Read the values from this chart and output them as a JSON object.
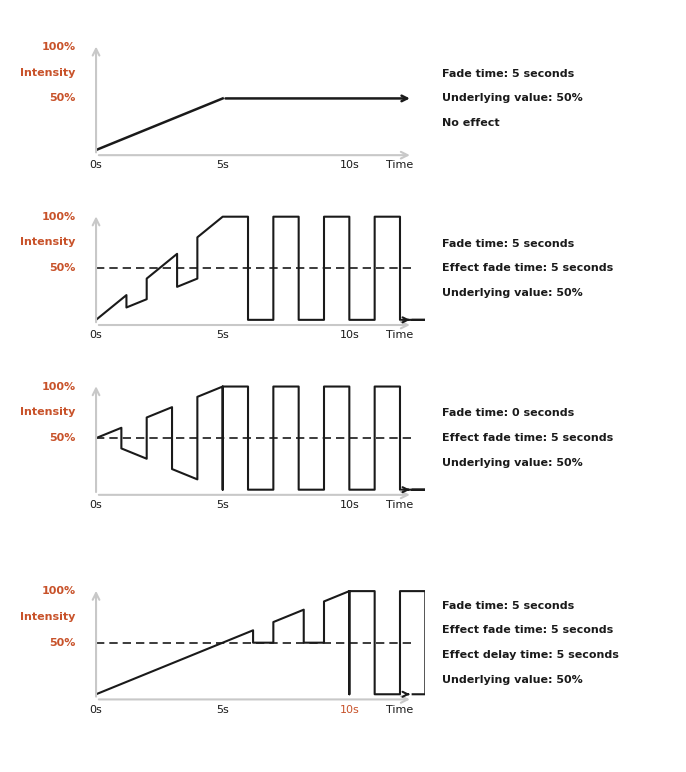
{
  "fig_width": 6.86,
  "fig_height": 7.72,
  "bg_color": "#ffffff",
  "axis_color": "#c8c8c8",
  "line_color": "#1a1a1a",
  "dashed_color": "#1a1a1a",
  "label_color_orange": "#c8522a",
  "text_color": "#1a1a1a",
  "panels": [
    {
      "annotation": [
        "Fade time: 5 seconds",
        "Underlying value: 50%",
        "No effect"
      ],
      "show_dashed": false,
      "xtick_colors": [
        "#1a1a1a",
        "#1a1a1a",
        "#1a1a1a"
      ]
    },
    {
      "annotation": [
        "Fade time: 5 seconds",
        "Effect fade time: 5 seconds",
        "Underlying value: 50%"
      ],
      "show_dashed": true,
      "xtick_colors": [
        "#1a1a1a",
        "#1a1a1a",
        "#1a1a1a"
      ]
    },
    {
      "annotation": [
        "Fade time: 0 seconds",
        "Effect fade time: 5 seconds",
        "Underlying value: 50%"
      ],
      "show_dashed": true,
      "xtick_colors": [
        "#1a1a1a",
        "#1a1a1a",
        "#1a1a1a"
      ]
    },
    {
      "annotation": [
        "Fade time: 5 seconds",
        "Effect fade time: 5 seconds",
        "Effect delay time: 5 seconds",
        "Underlying value: 50%"
      ],
      "show_dashed": true,
      "xtick_colors": [
        "#1a1a1a",
        "#1a1a1a",
        "#c8522a"
      ]
    }
  ]
}
